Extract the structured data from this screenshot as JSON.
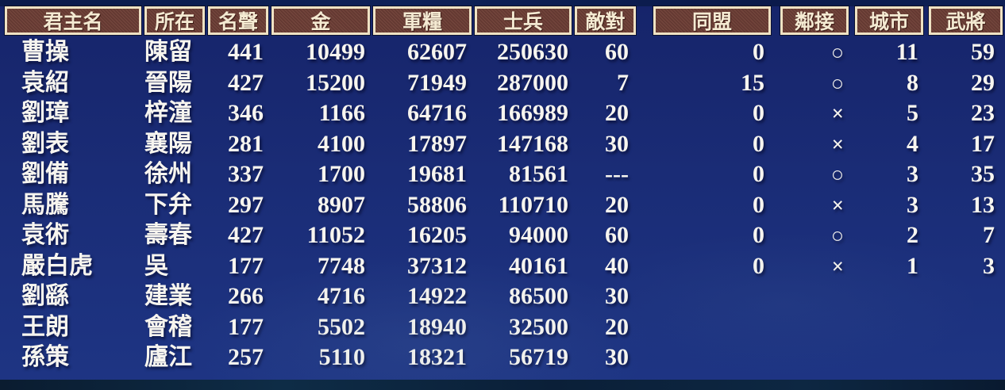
{
  "table": {
    "columns": [
      {
        "key": "ruler",
        "label": "君主名"
      },
      {
        "key": "location",
        "label": "所在"
      },
      {
        "key": "fame",
        "label": "名聲"
      },
      {
        "key": "gold",
        "label": "金"
      },
      {
        "key": "provisions",
        "label": "軍糧"
      },
      {
        "key": "soldiers",
        "label": "士兵"
      },
      {
        "key": "hostility",
        "label": "敵對"
      },
      {
        "key": "alliance",
        "label": "同盟"
      },
      {
        "key": "adjacency",
        "label": "鄰接"
      },
      {
        "key": "cities",
        "label": "城市"
      },
      {
        "key": "officers",
        "label": "武將"
      }
    ],
    "rows": [
      [
        "曹操",
        "陳留",
        "441",
        "10499",
        "62607",
        "250630",
        "60",
        "0",
        "○",
        "11",
        "59"
      ],
      [
        "袁紹",
        "晉陽",
        "427",
        "15200",
        "71949",
        "287000",
        "7",
        "15",
        "○",
        "8",
        "29"
      ],
      [
        "劉璋",
        "梓潼",
        "346",
        "1166",
        "64716",
        "166989",
        "20",
        "0",
        "×",
        "5",
        "23"
      ],
      [
        "劉表",
        "襄陽",
        "281",
        "4100",
        "17897",
        "147168",
        "30",
        "0",
        "×",
        "4",
        "17"
      ],
      [
        "劉備",
        "徐州",
        "337",
        "1700",
        "19681",
        "81561",
        "---",
        "0",
        "○",
        "3",
        "35"
      ],
      [
        "馬騰",
        "下弁",
        "297",
        "8907",
        "58806",
        "110710",
        "20",
        "0",
        "×",
        "3",
        "13"
      ],
      [
        "袁術",
        "壽春",
        "427",
        "11052",
        "16205",
        "94000",
        "60",
        "0",
        "○",
        "2",
        "7"
      ],
      [
        "嚴白虎",
        "吳",
        "177",
        "7748",
        "37312",
        "40161",
        "40",
        "0",
        "×",
        "1",
        "3"
      ],
      [
        "劉繇",
        "建業",
        "266",
        "4716",
        "14922",
        "86500",
        "30",
        "",
        "",
        "",
        ""
      ],
      [
        "王朗",
        "會稽",
        "177",
        "5502",
        "18940",
        "32500",
        "20",
        "",
        "",
        "",
        ""
      ],
      [
        "孫策",
        "廬江",
        "257",
        "5110",
        "18321",
        "56719",
        "30",
        "",
        "",
        "",
        ""
      ]
    ],
    "symbols": {
      "adjacent_yes": "○",
      "adjacent_no": "×",
      "not_applicable": "---"
    }
  },
  "colors": {
    "bg-top": "#16246a",
    "bg-bottom": "#1e3584",
    "header-bg": "#6b3d35",
    "header-border": "#efe2c4",
    "header-text": "#f4ead2",
    "row-text": "#f7f5ef"
  }
}
